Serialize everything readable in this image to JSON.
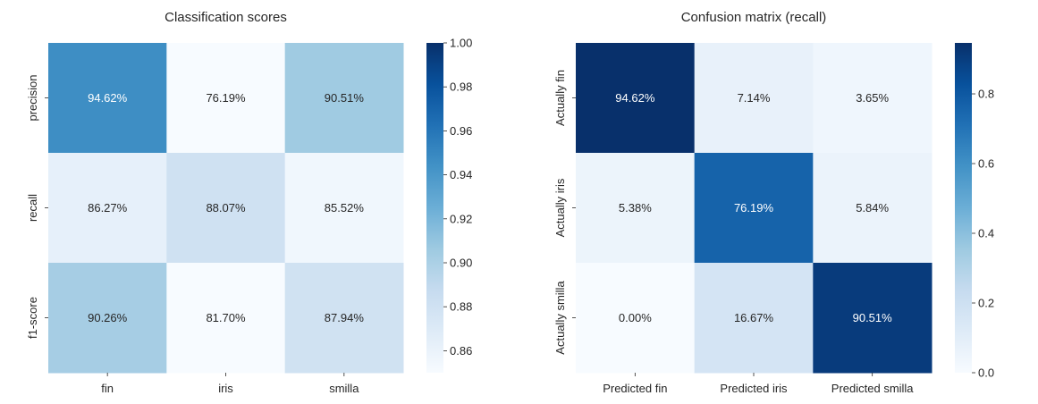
{
  "chart_data": [
    {
      "type": "heatmap",
      "title": "Classification scores",
      "x_categories": [
        "fin",
        "iris",
        "smilla"
      ],
      "y_categories": [
        "precision",
        "recall",
        "f1-score"
      ],
      "values": [
        [
          0.9462,
          0.7619,
          0.9051
        ],
        [
          0.8627,
          0.8807,
          0.8552
        ],
        [
          0.9026,
          0.817,
          0.8794
        ]
      ],
      "cell_labels": [
        [
          "94.62%",
          "76.19%",
          "90.51%"
        ],
        [
          "86.27%",
          "88.07%",
          "85.52%"
        ],
        [
          "90.26%",
          "81.70%",
          "87.94%"
        ]
      ],
      "colormap": "Blues",
      "vmin": 0.85,
      "vmax": 1.0,
      "colorbar_ticks": [
        "0.86",
        "0.88",
        "0.90",
        "0.92",
        "0.94",
        "0.96",
        "0.98",
        "1.00"
      ],
      "colorbar_tick_values": [
        0.86,
        0.88,
        0.9,
        0.92,
        0.94,
        0.96,
        0.98,
        1.0
      ],
      "legend": "right"
    },
    {
      "type": "heatmap",
      "title": "Confusion matrix (recall)",
      "x_categories": [
        "Predicted fin",
        "Predicted iris",
        "Predicted smilla"
      ],
      "y_categories": [
        "Actually fin",
        "Actually iris",
        "Actually smilla"
      ],
      "values": [
        [
          0.9462,
          0.0714,
          0.0365
        ],
        [
          0.0538,
          0.7619,
          0.0584
        ],
        [
          0.0,
          0.1667,
          0.9051
        ]
      ],
      "cell_labels": [
        [
          "94.62%",
          "7.14%",
          "3.65%"
        ],
        [
          "5.38%",
          "76.19%",
          "5.84%"
        ],
        [
          "0.00%",
          "16.67%",
          "90.51%"
        ]
      ],
      "colormap": "Blues",
      "vmin": 0.0,
      "vmax": 0.9462,
      "colorbar_ticks": [
        "0.0",
        "0.2",
        "0.4",
        "0.6",
        "0.8"
      ],
      "colorbar_tick_values": [
        0.0,
        0.2,
        0.4,
        0.6,
        0.8
      ],
      "legend": "right"
    }
  ]
}
